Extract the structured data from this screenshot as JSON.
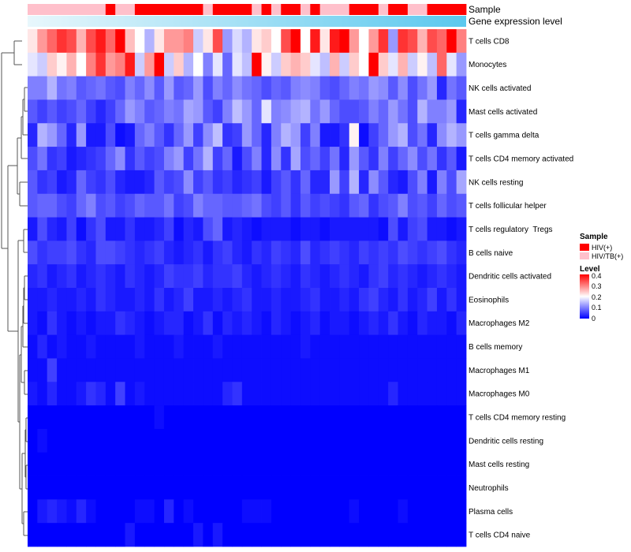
{
  "chart_data": {
    "type": "heatmap",
    "title": "",
    "annotation_titles": [
      "Sample",
      "Gene expression level"
    ],
    "rows": [
      "T cells CD8",
      "Monocytes",
      "NK cells activated",
      "Mast cells activated",
      "T cells gamma delta",
      "T cells CD4 memory activated",
      "NK cells resting",
      "T cells follicular helper",
      "T cells regulatory  Tregs",
      "B cells naive",
      "Dendritic cells activated",
      "Eosinophils",
      "Macrophages M2",
      "B cells memory",
      "Macrophages M1",
      "Macrophages M0",
      "T cells CD4 memory resting",
      "Dendritic cells resting",
      "Mast cells resting",
      "Neutrophils",
      "Plasma cells",
      "T cells CD4 naive"
    ],
    "n_columns": 45,
    "sample_groups": [
      "HIV/TB(+)",
      "HIV/TB(+)",
      "HIV/TB(+)",
      "HIV/TB(+)",
      "HIV/TB(+)",
      "HIV/TB(+)",
      "HIV/TB(+)",
      "HIV/TB(+)",
      "HIV(+)",
      "HIV/TB(+)",
      "HIV/TB(+)",
      "HIV(+)",
      "HIV(+)",
      "HIV(+)",
      "HIV(+)",
      "HIV(+)",
      "HIV(+)",
      "HIV(+)",
      "HIV/TB(+)",
      "HIV(+)",
      "HIV(+)",
      "HIV(+)",
      "HIV(+)",
      "HIV/TB(+)",
      "HIV(+)",
      "HIV/TB(+)",
      "HIV(+)",
      "HIV(+)",
      "HIV/TB(+)",
      "HIV(+)",
      "HIV/TB(+)",
      "HIV/TB(+)",
      "HIV/TB(+)",
      "HIV(+)",
      "HIV(+)",
      "HIV(+)",
      "HIV/TB(+)",
      "HIV(+)",
      "HIV(+)",
      "HIV/TB(+)",
      "HIV/TB(+)",
      "HIV(+)",
      "HIV(+)",
      "HIV(+)",
      "HIV(+)"
    ],
    "values": [
      [
        0.22,
        0.28,
        0.32,
        0.36,
        0.34,
        0.26,
        0.34,
        0.38,
        0.32,
        0.45,
        0.25,
        0.2,
        0.14,
        0.22,
        0.28,
        0.28,
        0.3,
        0.16,
        0.22,
        0.34,
        0.12,
        0.17,
        0.14,
        0.22,
        0.24,
        0.2,
        0.34,
        0.4,
        0.2,
        0.38,
        0.22,
        0.38,
        0.45,
        0.28,
        0.2,
        0.28,
        0.36,
        0.12,
        0.36,
        0.34,
        0.26,
        0.34,
        0.32,
        0.42,
        0.3
      ],
      [
        0.18,
        0.16,
        0.24,
        0.21,
        0.26,
        0.2,
        0.3,
        0.36,
        0.28,
        0.3,
        0.38,
        0.16,
        0.28,
        0.45,
        0.16,
        0.24,
        0.14,
        0.2,
        0.1,
        0.18,
        0.08,
        0.18,
        0.15,
        0.4,
        0.21,
        0.16,
        0.24,
        0.26,
        0.24,
        0.18,
        0.15,
        0.26,
        0.16,
        0.24,
        0.2,
        0.45,
        0.24,
        0.18,
        0.26,
        0.16,
        0.21,
        0.15,
        0.32,
        0.18,
        0.12
      ],
      [
        0.1,
        0.1,
        0.14,
        0.09,
        0.1,
        0.07,
        0.08,
        0.09,
        0.07,
        0.06,
        0.1,
        0.08,
        0.11,
        0.07,
        0.12,
        0.07,
        0.08,
        0.12,
        0.06,
        0.1,
        0.08,
        0.11,
        0.09,
        0.08,
        0.06,
        0.08,
        0.07,
        0.1,
        0.11,
        0.1,
        0.07,
        0.06,
        0.08,
        0.1,
        0.09,
        0.12,
        0.11,
        0.07,
        0.11,
        0.06,
        0.09,
        0.12,
        0.03,
        0.09,
        0.07
      ],
      [
        0.07,
        0.05,
        0.07,
        0.05,
        0.06,
        0.08,
        0.05,
        0.03,
        0.05,
        0.08,
        0.12,
        0.1,
        0.07,
        0.08,
        0.1,
        0.09,
        0.13,
        0.12,
        0.07,
        0.05,
        0.1,
        0.15,
        0.12,
        0.08,
        0.18,
        0.1,
        0.11,
        0.13,
        0.14,
        0.09,
        0.12,
        0.08,
        0.06,
        0.06,
        0.07,
        0.1,
        0.08,
        0.12,
        0.09,
        0.06,
        0.14,
        0.1,
        0.1,
        0.12,
        0.03
      ],
      [
        0.03,
        0.14,
        0.12,
        0.08,
        0.03,
        0.12,
        0.02,
        0.02,
        0.06,
        0.01,
        0.02,
        0.08,
        0.1,
        0.07,
        0.04,
        0.08,
        0.12,
        0.05,
        0.11,
        0.15,
        0.04,
        0.05,
        0.12,
        0.08,
        0.03,
        0.1,
        0.14,
        0.12,
        0.05,
        0.1,
        0.02,
        0.02,
        0.04,
        0.21,
        0.01,
        0.05,
        0.08,
        0.12,
        0.14,
        0.06,
        0.09,
        0.03,
        0.11,
        0.14,
        0.12
      ],
      [
        0.06,
        0.09,
        0.04,
        0.05,
        0.02,
        0.03,
        0.04,
        0.05,
        0.08,
        0.11,
        0.04,
        0.07,
        0.05,
        0.06,
        0.1,
        0.12,
        0.05,
        0.09,
        0.14,
        0.05,
        0.08,
        0.02,
        0.06,
        0.1,
        0.03,
        0.11,
        0.04,
        0.13,
        0.06,
        0.08,
        0.05,
        0.09,
        0.03,
        0.12,
        0.07,
        0.04,
        0.1,
        0.05,
        0.08,
        0.11,
        0.06,
        0.09,
        0.04,
        0.07,
        0.02
      ],
      [
        0.07,
        0.04,
        0.05,
        0.02,
        0.03,
        0.08,
        0.05,
        0.04,
        0.06,
        0.03,
        0.02,
        0.02,
        0.03,
        0.07,
        0.05,
        0.06,
        0.11,
        0.05,
        0.07,
        0.04,
        0.05,
        0.03,
        0.04,
        0.05,
        0.02,
        0.05,
        0.07,
        0.04,
        0.08,
        0.03,
        0.03,
        0.12,
        0.05,
        0.14,
        0.03,
        0.11,
        0.07,
        0.03,
        0.02,
        0.06,
        0.1,
        0.02,
        0.1,
        0.06,
        0.13
      ],
      [
        0.07,
        0.08,
        0.08,
        0.06,
        0.05,
        0.08,
        0.1,
        0.06,
        0.07,
        0.05,
        0.06,
        0.08,
        0.07,
        0.07,
        0.09,
        0.05,
        0.06,
        0.1,
        0.08,
        0.08,
        0.07,
        0.07,
        0.08,
        0.09,
        0.06,
        0.05,
        0.07,
        0.04,
        0.07,
        0.05,
        0.06,
        0.05,
        0.04,
        0.07,
        0.08,
        0.04,
        0.06,
        0.07,
        0.1,
        0.06,
        0.07,
        0.05,
        0.08,
        0.06,
        0.07
      ],
      [
        0.02,
        0.06,
        0.03,
        0.02,
        0.05,
        0.01,
        0.04,
        0.06,
        0.02,
        0.02,
        0.04,
        0.02,
        0.02,
        0.03,
        0.05,
        0.01,
        0.03,
        0.02,
        0.06,
        0.08,
        0.02,
        0.03,
        0.02,
        0.01,
        0.02,
        0.02,
        0.02,
        0.01,
        0.02,
        0.02,
        0.01,
        0.02,
        0.02,
        0.02,
        0.02,
        0.02,
        0.01,
        0.06,
        0.02,
        0.05,
        0.06,
        0.02,
        0.02,
        0.01,
        0.02
      ],
      [
        0.06,
        0.04,
        0.05,
        0.05,
        0.06,
        0.04,
        0.03,
        0.06,
        0.06,
        0.05,
        0.04,
        0.03,
        0.04,
        0.05,
        0.03,
        0.02,
        0.03,
        0.04,
        0.02,
        0.04,
        0.05,
        0.03,
        0.02,
        0.04,
        0.03,
        0.05,
        0.04,
        0.03,
        0.06,
        0.03,
        0.04,
        0.05,
        0.04,
        0.03,
        0.05,
        0.04,
        0.05,
        0.04,
        0.06,
        0.05,
        0.04,
        0.05,
        0.06,
        0.04,
        0.03
      ],
      [
        0.03,
        0.04,
        0.02,
        0.03,
        0.04,
        0.02,
        0.03,
        0.04,
        0.03,
        0.02,
        0.04,
        0.03,
        0.02,
        0.03,
        0.05,
        0.04,
        0.04,
        0.05,
        0.03,
        0.04,
        0.04,
        0.05,
        0.03,
        0.02,
        0.03,
        0.04,
        0.03,
        0.02,
        0.04,
        0.03,
        0.02,
        0.03,
        0.04,
        0.03,
        0.02,
        0.04,
        0.05,
        0.03,
        0.04,
        0.03,
        0.02,
        0.03,
        0.04,
        0.03,
        0.02
      ],
      [
        0.02,
        0.02,
        0.03,
        0.02,
        0.02,
        0.03,
        0.02,
        0.04,
        0.03,
        0.02,
        0.02,
        0.03,
        0.02,
        0.04,
        0.02,
        0.03,
        0.05,
        0.02,
        0.02,
        0.03,
        0.02,
        0.03,
        0.04,
        0.02,
        0.02,
        0.03,
        0.02,
        0.02,
        0.03,
        0.04,
        0.02,
        0.02,
        0.03,
        0.02,
        0.04,
        0.05,
        0.03,
        0.02,
        0.04,
        0.02,
        0.03,
        0.05,
        0.02,
        0.04,
        0.02
      ],
      [
        0.02,
        0.01,
        0.04,
        0.02,
        0.01,
        0.02,
        0.01,
        0.02,
        0.02,
        0.04,
        0.03,
        0.02,
        0.01,
        0.02,
        0.03,
        0.03,
        0.01,
        0.02,
        0.04,
        0.01,
        0.03,
        0.02,
        0.03,
        0.02,
        0.01,
        0.03,
        0.02,
        0.01,
        0.02,
        0.03,
        0.01,
        0.02,
        0.02,
        0.01,
        0.02,
        0.03,
        0.02,
        0.04,
        0.02,
        0.01,
        0.03,
        0.02,
        0.02,
        0.01,
        0.03
      ],
      [
        0.01,
        0.03,
        0.01,
        0.02,
        0.01,
        0.01,
        0.02,
        0.01,
        0.01,
        0.01,
        0.01,
        0.02,
        0.01,
        0.01,
        0.01,
        0.02,
        0.01,
        0.01,
        0.01,
        0.02,
        0.01,
        0.01,
        0.01,
        0.01,
        0.01,
        0.01,
        0.01,
        0.01,
        0.02,
        0.01,
        0.01,
        0.01,
        0.01,
        0.01,
        0.01,
        0.01,
        0.01,
        0.01,
        0.01,
        0.01,
        0.01,
        0.01,
        0.01,
        0.01,
        0.01
      ],
      [
        0.01,
        0.01,
        0.05,
        0.01,
        0.01,
        0.01,
        0.01,
        0.01,
        0.01,
        0.01,
        0.01,
        0.01,
        0.01,
        0.01,
        0.01,
        0.01,
        0.01,
        0.01,
        0.01,
        0.01,
        0.01,
        0.01,
        0.01,
        0.01,
        0.01,
        0.01,
        0.01,
        0.01,
        0.01,
        0.01,
        0.01,
        0.01,
        0.01,
        0.01,
        0.01,
        0.01,
        0.01,
        0.01,
        0.01,
        0.01,
        0.01,
        0.01,
        0.01,
        0.01,
        0.01
      ],
      [
        0.02,
        0.01,
        0.03,
        0.01,
        0.01,
        0.02,
        0.04,
        0.03,
        0.01,
        0.05,
        0.01,
        0.02,
        0.01,
        0.01,
        0.01,
        0.01,
        0.01,
        0.01,
        0.01,
        0.01,
        0.03,
        0.04,
        0.01,
        0.01,
        0.01,
        0.01,
        0.01,
        0.01,
        0.01,
        0.01,
        0.01,
        0.01,
        0.01,
        0.01,
        0.01,
        0.01,
        0.01,
        0.03,
        0.01,
        0.01,
        0.01,
        0.01,
        0.01,
        0.01,
        0.01
      ],
      [
        0.0,
        0.0,
        0.0,
        0.0,
        0.0,
        0.0,
        0.0,
        0.0,
        0.0,
        0.0,
        0.0,
        0.0,
        0.0,
        0.01,
        0.0,
        0.0,
        0.0,
        0.0,
        0.0,
        0.0,
        0.0,
        0.0,
        0.0,
        0.0,
        0.0,
        0.0,
        0.0,
        0.0,
        0.0,
        0.0,
        0.0,
        0.0,
        0.0,
        0.0,
        0.0,
        0.0,
        0.0,
        0.0,
        0.0,
        0.0,
        0.0,
        0.0,
        0.0,
        0.0,
        0.0
      ],
      [
        0.0,
        0.01,
        0.0,
        0.0,
        0.0,
        0.0,
        0.0,
        0.0,
        0.0,
        0.0,
        0.0,
        0.0,
        0.0,
        0.0,
        0.0,
        0.0,
        0.0,
        0.0,
        0.0,
        0.0,
        0.0,
        0.0,
        0.0,
        0.0,
        0.0,
        0.0,
        0.0,
        0.0,
        0.0,
        0.0,
        0.0,
        0.0,
        0.0,
        0.0,
        0.0,
        0.0,
        0.0,
        0.0,
        0.0,
        0.0,
        0.0,
        0.0,
        0.0,
        0.0,
        0.0
      ],
      [
        0.0,
        0.0,
        0.0,
        0.0,
        0.0,
        0.0,
        0.0,
        0.0,
        0.0,
        0.0,
        0.0,
        0.0,
        0.0,
        0.0,
        0.0,
        0.0,
        0.0,
        0.0,
        0.0,
        0.0,
        0.0,
        0.0,
        0.0,
        0.0,
        0.0,
        0.0,
        0.0,
        0.0,
        0.0,
        0.0,
        0.0,
        0.0,
        0.0,
        0.0,
        0.0,
        0.0,
        0.0,
        0.0,
        0.0,
        0.0,
        0.0,
        0.0,
        0.0,
        0.0,
        0.0
      ],
      [
        0.0,
        0.0,
        0.0,
        0.0,
        0.0,
        0.0,
        0.0,
        0.0,
        0.0,
        0.0,
        0.0,
        0.0,
        0.0,
        0.0,
        0.0,
        0.0,
        0.0,
        0.0,
        0.0,
        0.0,
        0.0,
        0.0,
        0.0,
        0.0,
        0.0,
        0.0,
        0.0,
        0.0,
        0.0,
        0.0,
        0.0,
        0.0,
        0.0,
        0.0,
        0.0,
        0.0,
        0.0,
        0.0,
        0.0,
        0.0,
        0.0,
        0.0,
        0.0,
        0.0,
        0.0
      ],
      [
        0.0,
        0.02,
        0.03,
        0.02,
        0.01,
        0.03,
        0.01,
        0.0,
        0.0,
        0.0,
        0.0,
        0.01,
        0.01,
        0.0,
        0.03,
        0.0,
        0.01,
        0.0,
        0.0,
        0.0,
        0.0,
        0.0,
        0.01,
        0.01,
        0.01,
        0.0,
        0.0,
        0.0,
        0.0,
        0.0,
        0.0,
        0.0,
        0.0,
        0.01,
        0.0,
        0.0,
        0.0,
        0.0,
        0.01,
        0.0,
        0.0,
        0.0,
        0.0,
        0.0,
        0.0
      ],
      [
        0.0,
        0.0,
        0.0,
        0.0,
        0.0,
        0.0,
        0.0,
        0.0,
        0.0,
        0.0,
        0.02,
        0.0,
        0.0,
        0.0,
        0.0,
        0.0,
        0.0,
        0.02,
        0.0,
        0.02,
        0.0,
        0.0,
        0.0,
        0.0,
        0.0,
        0.0,
        0.0,
        0.0,
        0.0,
        0.0,
        0.0,
        0.0,
        0.0,
        0.0,
        0.0,
        0.0,
        0.0,
        0.0,
        0.0,
        0.0,
        0.0,
        0.0,
        0.0,
        0.0,
        0.0
      ]
    ],
    "color_scale": {
      "min": 0,
      "mid": 0.2,
      "max": 0.4,
      "low": "#0000ff",
      "midColor": "#ffffff",
      "high": "#ff0000"
    },
    "legends": {
      "sample": {
        "title": "Sample",
        "items": [
          {
            "label": "HIV(+)",
            "color": "#ff0000"
          },
          {
            "label": "HIV/TB(+)",
            "color": "#ffc0cb"
          }
        ]
      },
      "level": {
        "title": "Level",
        "ticks": [
          "0.4",
          "0.3",
          "0.2",
          "0.1",
          "0"
        ]
      }
    },
    "expr_gradient": {
      "from": "#e8f7fc",
      "to": "#5bc8ee"
    }
  }
}
